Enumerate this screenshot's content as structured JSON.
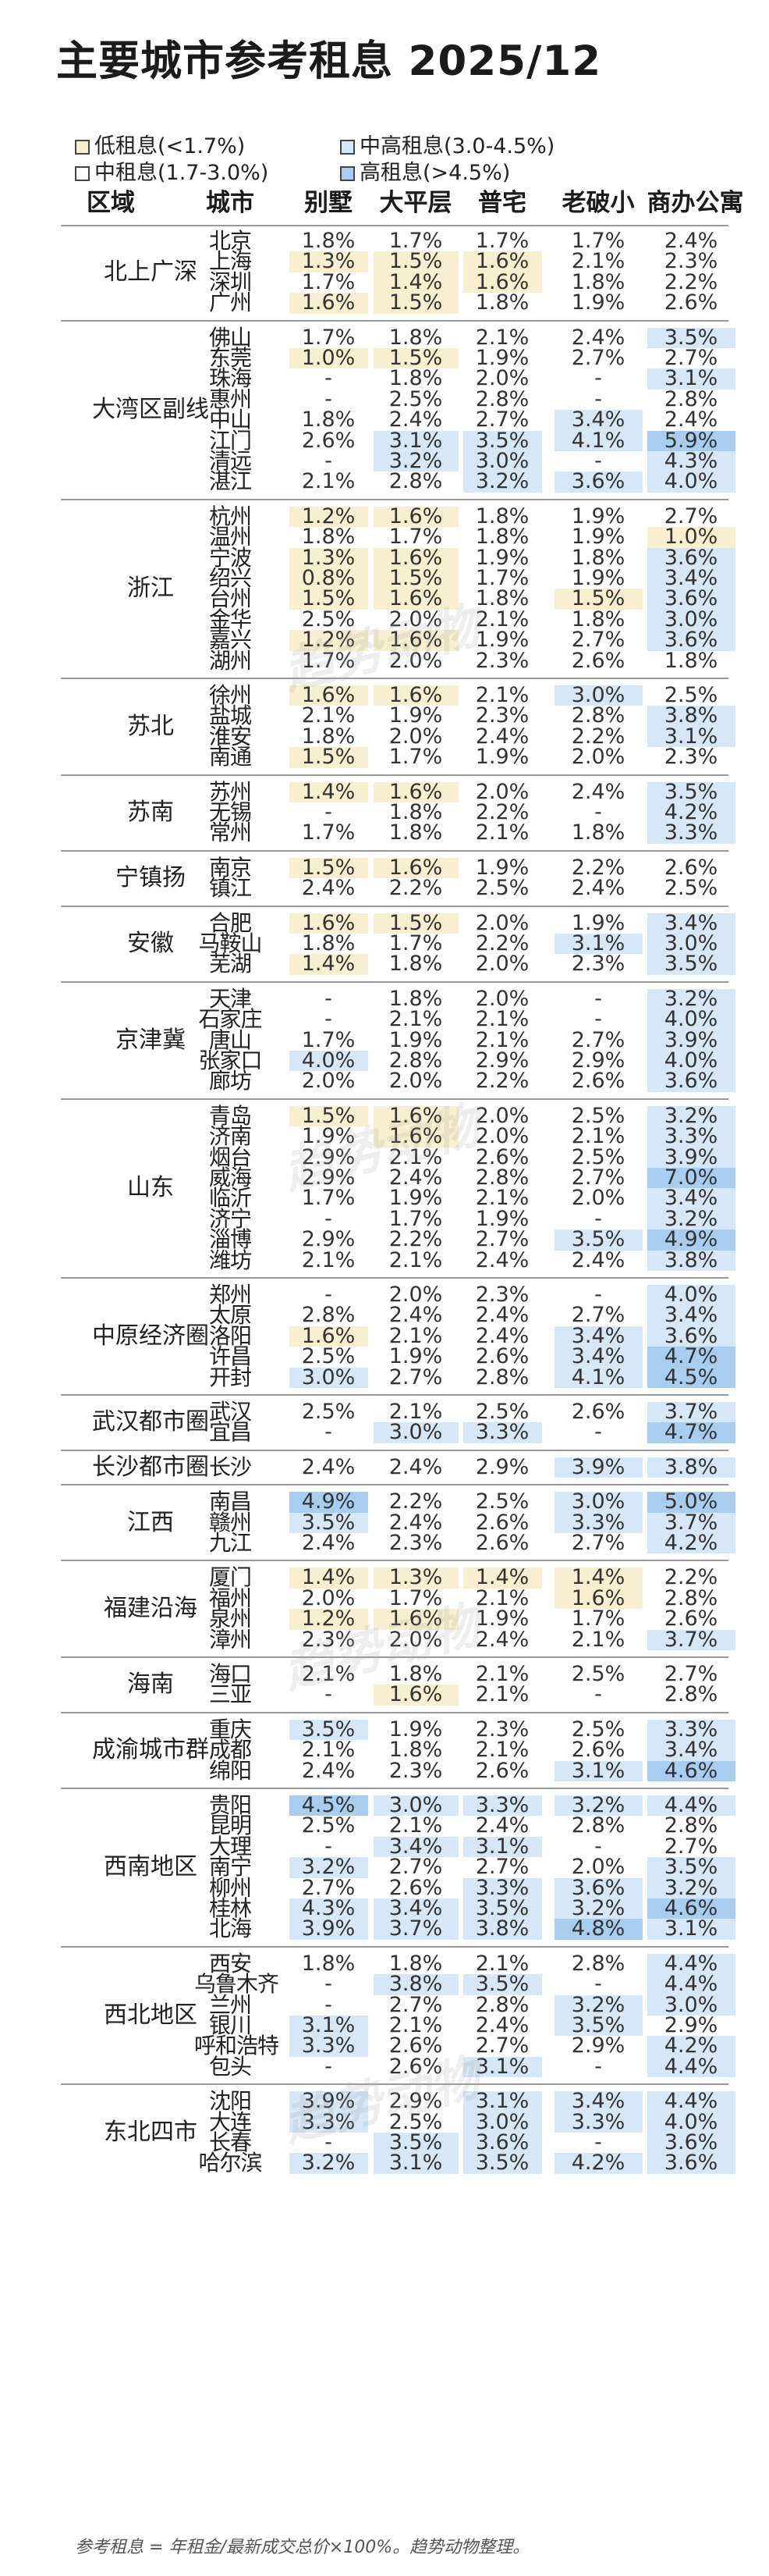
{
  "title": "主要城市参考租息 2025/12",
  "legend": [
    {
      "key": "low",
      "label": "低租息(<1.7%)",
      "color": "#f7efcf"
    },
    {
      "key": "mid",
      "label": "中租息(1.7-3.0%)",
      "color": "#ffffff"
    },
    {
      "key": "midhigh",
      "label": "中高租息(3.0-4.5%)",
      "color": "#d6e7f7"
    },
    {
      "key": "high",
      "label": "高租息(>4.5%)",
      "color": "#a9cdef"
    }
  ],
  "note": "参考租息 = 年租金/最新成交总价×100%。趋势动物整理。",
  "watermark": "趋势动物",
  "chart_data": {
    "type": "table",
    "title": "主要城市参考租息 2025/12",
    "columns": [
      "区域",
      "城市",
      "别墅",
      "大平层",
      "普宅",
      "老破小",
      "商办公寓"
    ],
    "groups": [
      {
        "region": "北上广深",
        "rows": [
          [
            "北京",
            "1.8%",
            "1.7%",
            "1.7%",
            "1.7%",
            "2.4%"
          ],
          [
            "上海",
            "1.3%",
            "1.5%",
            "1.6%",
            "2.1%",
            "2.3%"
          ],
          [
            "深圳",
            "1.7%",
            "1.4%",
            "1.6%",
            "1.8%",
            "2.2%"
          ],
          [
            "广州",
            "1.6%",
            "1.5%",
            "1.8%",
            "1.9%",
            "2.6%"
          ]
        ]
      },
      {
        "region": "大湾区副线",
        "rows": [
          [
            "佛山",
            "1.7%",
            "1.8%",
            "2.1%",
            "2.4%",
            "3.5%"
          ],
          [
            "东莞",
            "1.0%",
            "1.5%",
            "1.9%",
            "2.7%",
            "2.7%"
          ],
          [
            "珠海",
            "-",
            "1.8%",
            "2.0%",
            "-",
            "3.1%"
          ],
          [
            "惠州",
            "-",
            "2.5%",
            "2.8%",
            "-",
            "2.8%"
          ],
          [
            "中山",
            "1.8%",
            "2.4%",
            "2.7%",
            "3.4%",
            "2.4%"
          ],
          [
            "江门",
            "2.6%",
            "3.1%",
            "3.5%",
            "4.1%",
            "5.9%"
          ],
          [
            "清远",
            "-",
            "3.2%",
            "3.0%",
            "-",
            "4.3%"
          ],
          [
            "湛江",
            "2.1%",
            "2.8%",
            "3.2%",
            "3.6%",
            "4.0%"
          ]
        ]
      },
      {
        "region": "浙江",
        "rows": [
          [
            "杭州",
            "1.2%",
            "1.6%",
            "1.8%",
            "1.9%",
            "2.7%"
          ],
          [
            "温州",
            "1.8%",
            "1.7%",
            "1.8%",
            "1.9%",
            "1.0%"
          ],
          [
            "宁波",
            "1.3%",
            "1.6%",
            "1.9%",
            "1.8%",
            "3.6%"
          ],
          [
            "绍兴",
            "0.8%",
            "1.5%",
            "1.7%",
            "1.9%",
            "3.4%"
          ],
          [
            "台州",
            "1.5%",
            "1.6%",
            "1.8%",
            "1.5%",
            "3.6%"
          ],
          [
            "金华",
            "2.5%",
            "2.0%",
            "2.1%",
            "1.8%",
            "3.0%"
          ],
          [
            "嘉兴",
            "1.2%",
            "1.6%",
            "1.9%",
            "2.7%",
            "3.6%"
          ],
          [
            "湖州",
            "1.7%",
            "2.0%",
            "2.3%",
            "2.6%",
            "1.8%"
          ]
        ]
      },
      {
        "region": "苏北",
        "rows": [
          [
            "徐州",
            "1.6%",
            "1.6%",
            "2.1%",
            "3.0%",
            "2.5%"
          ],
          [
            "盐城",
            "2.1%",
            "1.9%",
            "2.3%",
            "2.8%",
            "3.8%"
          ],
          [
            "淮安",
            "1.8%",
            "2.0%",
            "2.4%",
            "2.2%",
            "3.1%"
          ],
          [
            "南通",
            "1.5%",
            "1.7%",
            "1.9%",
            "2.0%",
            "2.3%"
          ]
        ]
      },
      {
        "region": "苏南",
        "rows": [
          [
            "苏州",
            "1.4%",
            "1.6%",
            "2.0%",
            "2.4%",
            "3.5%"
          ],
          [
            "无锡",
            "-",
            "1.8%",
            "2.2%",
            "-",
            "4.2%"
          ],
          [
            "常州",
            "1.7%",
            "1.8%",
            "2.1%",
            "1.8%",
            "3.3%"
          ]
        ]
      },
      {
        "region": "宁镇扬",
        "rows": [
          [
            "南京",
            "1.5%",
            "1.6%",
            "1.9%",
            "2.2%",
            "2.6%"
          ],
          [
            "镇江",
            "2.4%",
            "2.2%",
            "2.5%",
            "2.4%",
            "2.5%"
          ]
        ]
      },
      {
        "region": "安徽",
        "rows": [
          [
            "合肥",
            "1.6%",
            "1.5%",
            "2.0%",
            "1.9%",
            "3.4%"
          ],
          [
            "马鞍山",
            "1.8%",
            "1.7%",
            "2.2%",
            "3.1%",
            "3.0%"
          ],
          [
            "芜湖",
            "1.4%",
            "1.8%",
            "2.0%",
            "2.3%",
            "3.5%"
          ]
        ]
      },
      {
        "region": "京津冀",
        "rows": [
          [
            "天津",
            "-",
            "1.8%",
            "2.0%",
            "-",
            "3.2%"
          ],
          [
            "石家庄",
            "-",
            "2.1%",
            "2.1%",
            "-",
            "4.0%"
          ],
          [
            "唐山",
            "1.7%",
            "1.9%",
            "2.1%",
            "2.7%",
            "3.9%"
          ],
          [
            "张家口",
            "4.0%",
            "2.8%",
            "2.9%",
            "2.9%",
            "4.0%"
          ],
          [
            "廊坊",
            "2.0%",
            "2.0%",
            "2.2%",
            "2.6%",
            "3.6%"
          ]
        ]
      },
      {
        "region": "山东",
        "rows": [
          [
            "青岛",
            "1.5%",
            "1.6%",
            "2.0%",
            "2.5%",
            "3.2%"
          ],
          [
            "济南",
            "1.9%",
            "1.6%",
            "2.0%",
            "2.1%",
            "3.3%"
          ],
          [
            "烟台",
            "2.9%",
            "2.1%",
            "2.6%",
            "2.5%",
            "3.9%"
          ],
          [
            "威海",
            "2.9%",
            "2.4%",
            "2.8%",
            "2.7%",
            "7.0%"
          ],
          [
            "临沂",
            "1.7%",
            "1.9%",
            "2.1%",
            "2.0%",
            "3.4%"
          ],
          [
            "济宁",
            "-",
            "1.7%",
            "1.9%",
            "-",
            "3.2%"
          ],
          [
            "淄博",
            "2.9%",
            "2.2%",
            "2.7%",
            "3.5%",
            "4.9%"
          ],
          [
            "潍坊",
            "2.1%",
            "2.1%",
            "2.4%",
            "2.4%",
            "3.8%"
          ]
        ]
      },
      {
        "region": "中原经济圈",
        "rows": [
          [
            "郑州",
            "-",
            "2.0%",
            "2.3%",
            "-",
            "4.0%"
          ],
          [
            "太原",
            "2.8%",
            "2.4%",
            "2.4%",
            "2.7%",
            "3.4%"
          ],
          [
            "洛阳",
            "1.6%",
            "2.1%",
            "2.4%",
            "3.4%",
            "3.6%"
          ],
          [
            "许昌",
            "2.5%",
            "1.9%",
            "2.6%",
            "3.4%",
            "4.7%"
          ],
          [
            "开封",
            "3.0%",
            "2.7%",
            "2.8%",
            "4.1%",
            "4.5%"
          ]
        ]
      },
      {
        "region": "武汉都市圈",
        "rows": [
          [
            "武汉",
            "2.5%",
            "2.1%",
            "2.5%",
            "2.6%",
            "3.7%"
          ],
          [
            "宜昌",
            "-",
            "3.0%",
            "3.3%",
            "-",
            "4.7%"
          ]
        ]
      },
      {
        "region": "长沙都市圈",
        "rows": [
          [
            "长沙",
            "2.4%",
            "2.4%",
            "2.9%",
            "3.9%",
            "3.8%"
          ]
        ]
      },
      {
        "region": "江西",
        "rows": [
          [
            "南昌",
            "4.9%",
            "2.2%",
            "2.5%",
            "3.0%",
            "5.0%"
          ],
          [
            "赣州",
            "3.5%",
            "2.4%",
            "2.6%",
            "3.3%",
            "3.7%"
          ],
          [
            "九江",
            "2.4%",
            "2.3%",
            "2.6%",
            "2.7%",
            "4.2%"
          ]
        ]
      },
      {
        "region": "福建沿海",
        "rows": [
          [
            "厦门",
            "1.4%",
            "1.3%",
            "1.4%",
            "1.4%",
            "2.2%"
          ],
          [
            "福州",
            "2.0%",
            "1.7%",
            "2.1%",
            "1.6%",
            "2.8%"
          ],
          [
            "泉州",
            "1.2%",
            "1.6%",
            "1.9%",
            "1.7%",
            "2.6%"
          ],
          [
            "漳州",
            "2.3%",
            "2.0%",
            "2.4%",
            "2.1%",
            "3.7%"
          ]
        ]
      },
      {
        "region": "海南",
        "rows": [
          [
            "海口",
            "2.1%",
            "1.8%",
            "2.1%",
            "2.5%",
            "2.7%"
          ],
          [
            "三亚",
            "-",
            "1.6%",
            "2.1%",
            "-",
            "2.8%"
          ]
        ]
      },
      {
        "region": "成渝城市群",
        "rows": [
          [
            "重庆",
            "3.5%",
            "1.9%",
            "2.3%",
            "2.5%",
            "3.3%"
          ],
          [
            "成都",
            "2.1%",
            "1.8%",
            "2.1%",
            "2.6%",
            "3.4%"
          ],
          [
            "绵阳",
            "2.4%",
            "2.3%",
            "2.6%",
            "3.1%",
            "4.6%"
          ]
        ]
      },
      {
        "region": "西南地区",
        "rows": [
          [
            "贵阳",
            "4.5%",
            "3.0%",
            "3.3%",
            "3.2%",
            "4.4%"
          ],
          [
            "昆明",
            "2.5%",
            "2.1%",
            "2.4%",
            "2.8%",
            "2.8%"
          ],
          [
            "大理",
            "-",
            "3.4%",
            "3.1%",
            "-",
            "2.7%"
          ],
          [
            "南宁",
            "3.2%",
            "2.7%",
            "2.7%",
            "2.0%",
            "3.5%"
          ],
          [
            "柳州",
            "2.7%",
            "2.6%",
            "3.3%",
            "3.6%",
            "3.2%"
          ],
          [
            "桂林",
            "4.3%",
            "3.4%",
            "3.5%",
            "3.2%",
            "4.6%"
          ],
          [
            "北海",
            "3.9%",
            "3.7%",
            "3.8%",
            "4.8%",
            "3.1%"
          ]
        ]
      },
      {
        "region": "西北地区",
        "rows": [
          [
            "西安",
            "1.8%",
            "1.8%",
            "2.1%",
            "2.8%",
            "4.4%"
          ],
          [
            "乌鲁木齐",
            "-",
            "3.8%",
            "3.5%",
            "-",
            "4.4%"
          ],
          [
            "兰州",
            "-",
            "2.7%",
            "2.8%",
            "3.2%",
            "3.0%"
          ],
          [
            "银川",
            "3.1%",
            "2.1%",
            "2.4%",
            "3.5%",
            "2.9%"
          ],
          [
            "呼和浩特",
            "3.3%",
            "2.6%",
            "2.7%",
            "2.9%",
            "4.2%"
          ],
          [
            "包头",
            "-",
            "2.6%",
            "3.1%",
            "-",
            "4.4%"
          ]
        ]
      },
      {
        "region": "东北四市",
        "rows": [
          [
            "沈阳",
            "3.9%",
            "2.9%",
            "3.1%",
            "3.4%",
            "4.4%"
          ],
          [
            "大连",
            "3.3%",
            "2.5%",
            "3.0%",
            "3.3%",
            "4.0%"
          ],
          [
            "长春",
            "-",
            "3.5%",
            "3.6%",
            "-",
            "3.6%"
          ],
          [
            "哈尔滨",
            "3.2%",
            "3.1%",
            "3.5%",
            "4.2%",
            "3.6%"
          ]
        ]
      }
    ]
  }
}
